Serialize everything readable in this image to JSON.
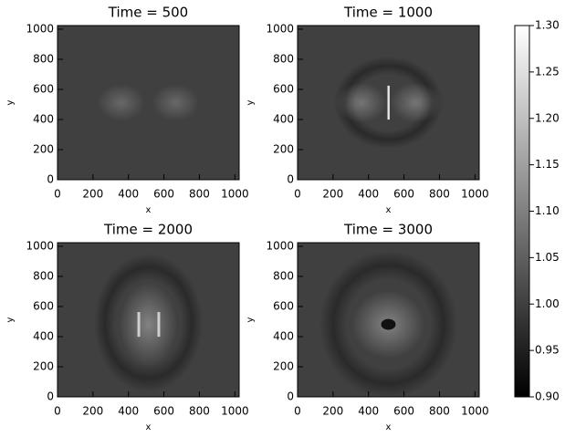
{
  "chart_data": [
    {
      "type": "heatmap",
      "title": "Time =   500",
      "xlabel": "x",
      "ylabel": "y",
      "xlim": [
        0,
        1024
      ],
      "ylim": [
        0,
        1024
      ],
      "xticks": [
        0,
        200,
        400,
        600,
        800,
        1000
      ],
      "yticks": [
        0,
        200,
        400,
        600,
        800,
        1000
      ]
    },
    {
      "type": "heatmap",
      "title": "Time =  1000",
      "xlabel": "x",
      "ylabel": "y",
      "xlim": [
        0,
        1024
      ],
      "ylim": [
        0,
        1024
      ],
      "xticks": [
        0,
        200,
        400,
        600,
        800,
        1000
      ],
      "yticks": [
        0,
        200,
        400,
        600,
        800,
        1000
      ]
    },
    {
      "type": "heatmap",
      "title": "Time =  2000",
      "xlabel": "x",
      "ylabel": "y",
      "xlim": [
        0,
        1024
      ],
      "ylim": [
        0,
        1024
      ],
      "xticks": [
        0,
        200,
        400,
        600,
        800,
        1000
      ],
      "yticks": [
        0,
        200,
        400,
        600,
        800,
        1000
      ]
    },
    {
      "type": "heatmap",
      "title": "Time =  3000",
      "xlabel": "x",
      "ylabel": "y",
      "xlim": [
        0,
        1024
      ],
      "ylim": [
        0,
        1024
      ],
      "xticks": [
        0,
        200,
        400,
        600,
        800,
        1000
      ],
      "yticks": [
        0,
        200,
        400,
        600,
        800,
        1000
      ]
    }
  ],
  "colorbar": {
    "lim": [
      0.9,
      1.3
    ],
    "ticks": [
      {
        "value": 0.9,
        "label": "0.90"
      },
      0.95,
      {
        "value": 1.0,
        "label": "1.00"
      },
      1.05,
      {
        "value": 1.1,
        "label": "1.10"
      },
      1.15,
      {
        "value": 1.2,
        "label": "1.20"
      },
      1.25,
      {
        "value": 1.3,
        "label": "1.30"
      }
    ]
  }
}
